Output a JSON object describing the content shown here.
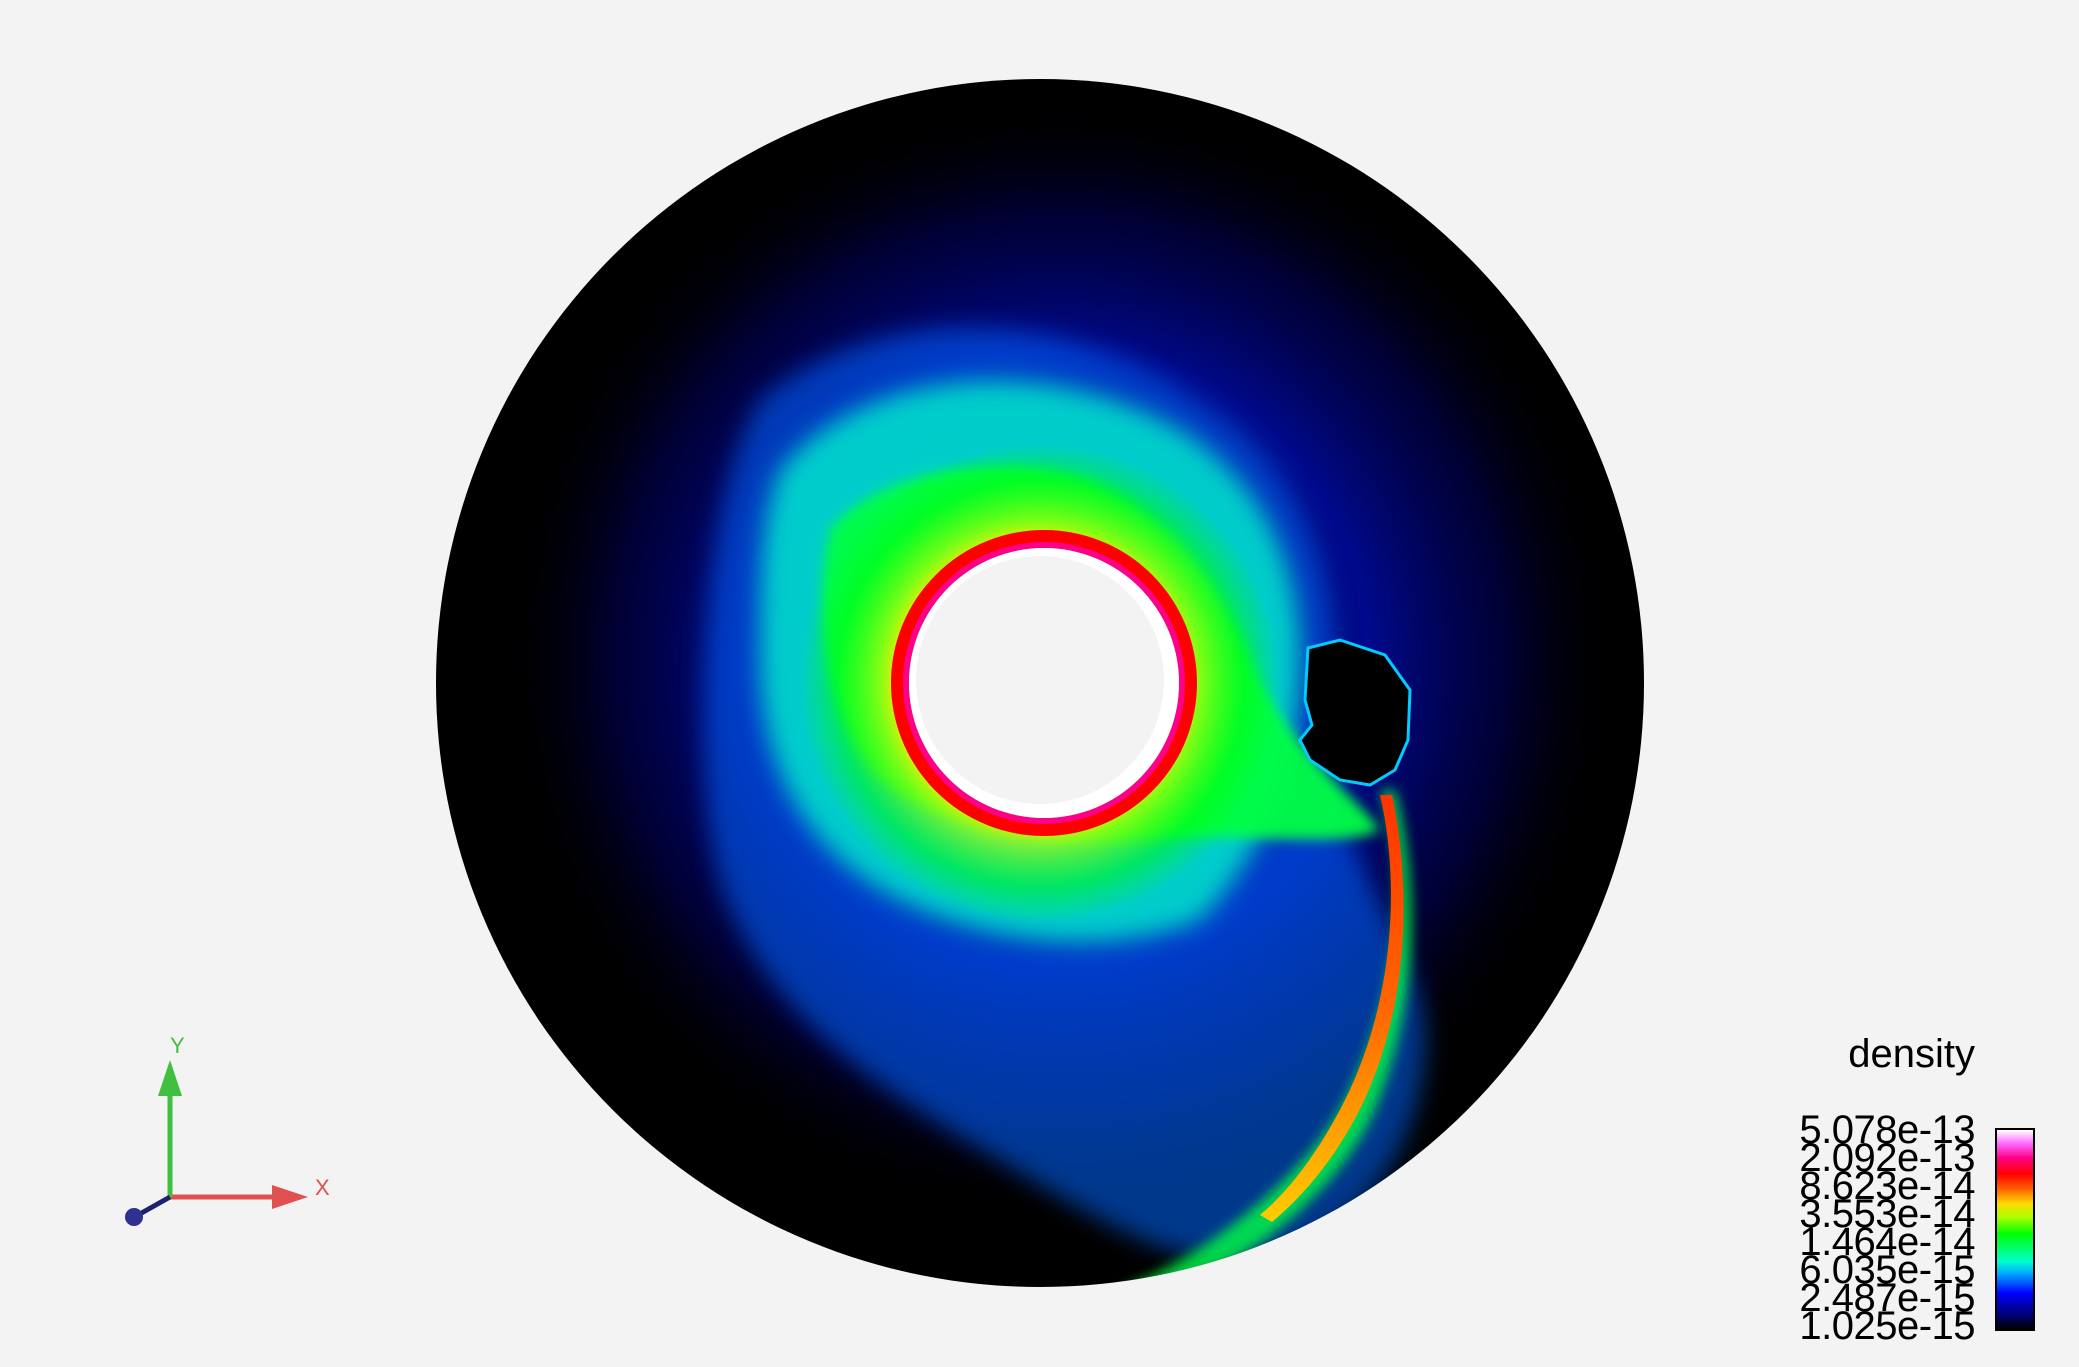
{
  "legend": {
    "title": "density",
    "labels": [
      "5.078e-13",
      "2.092e-13",
      "8.623e-14",
      "3.553e-14",
      "1.464e-14",
      "6.035e-15",
      "2.487e-15",
      "1.025e-15"
    ]
  },
  "axes": {
    "x_label": "X",
    "y_label": "Y",
    "x_color": "#e05050",
    "y_color": "#40c040",
    "z_color": "#202070"
  },
  "colors": {
    "background": "#f3f3f3",
    "disk_outer": "#000000",
    "inner_hole": "#f3f3f3"
  }
}
